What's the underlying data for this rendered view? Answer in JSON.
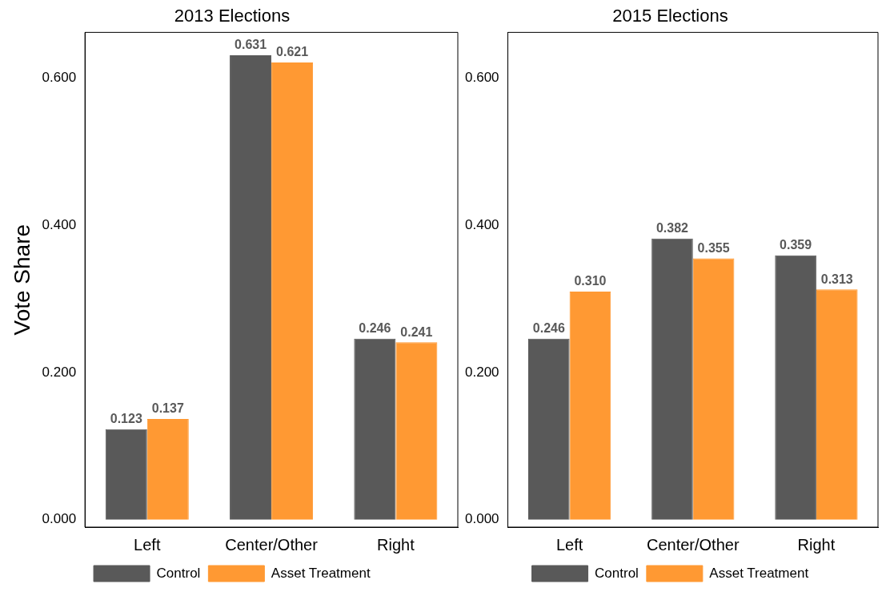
{
  "chart_data": [
    {
      "type": "bar",
      "title": "2013 Elections",
      "ylabel": "Vote Share",
      "categories": [
        "Left",
        "Center/Other",
        "Right"
      ],
      "series": [
        {
          "name": "Control",
          "color": "#595959",
          "values": [
            0.123,
            0.631,
            0.246
          ],
          "value_labels": [
            "0.123",
            "0.631",
            "0.246"
          ]
        },
        {
          "name": "Asset Treatment",
          "color": "#ff9933",
          "values": [
            0.137,
            0.621,
            0.241
          ],
          "value_labels": [
            "0.137",
            "0.621",
            "0.241"
          ]
        }
      ],
      "ylim": [
        -0.01,
        0.662
      ],
      "yticks": [
        {
          "value": 0,
          "label": "0.000"
        },
        {
          "value": 0.2,
          "label": "0.200"
        },
        {
          "value": 0.4,
          "label": "0.400"
        },
        {
          "value": 0.6,
          "label": "0.600"
        }
      ],
      "grid": false,
      "legend": "bottom"
    },
    {
      "type": "bar",
      "title": "2015 Elections",
      "categories": [
        "Left",
        "Center/Other",
        "Right"
      ],
      "series": [
        {
          "name": "Control",
          "color": "#595959",
          "values": [
            0.246,
            0.382,
            0.359
          ],
          "value_labels": [
            "0.246",
            "0.382",
            "0.359"
          ]
        },
        {
          "name": "Asset Treatment",
          "color": "#ff9933",
          "values": [
            0.31,
            0.355,
            0.313
          ],
          "value_labels": [
            "0.310",
            "0.355",
            "0.313"
          ]
        }
      ],
      "ylim": [
        -0.01,
        0.662
      ],
      "yticks": [
        {
          "value": 0,
          "label": "0.000"
        },
        {
          "value": 0.2,
          "label": "0.200"
        },
        {
          "value": 0.4,
          "label": "0.400"
        },
        {
          "value": 0.6,
          "label": "0.600"
        }
      ],
      "grid": false,
      "legend": "bottom"
    }
  ]
}
